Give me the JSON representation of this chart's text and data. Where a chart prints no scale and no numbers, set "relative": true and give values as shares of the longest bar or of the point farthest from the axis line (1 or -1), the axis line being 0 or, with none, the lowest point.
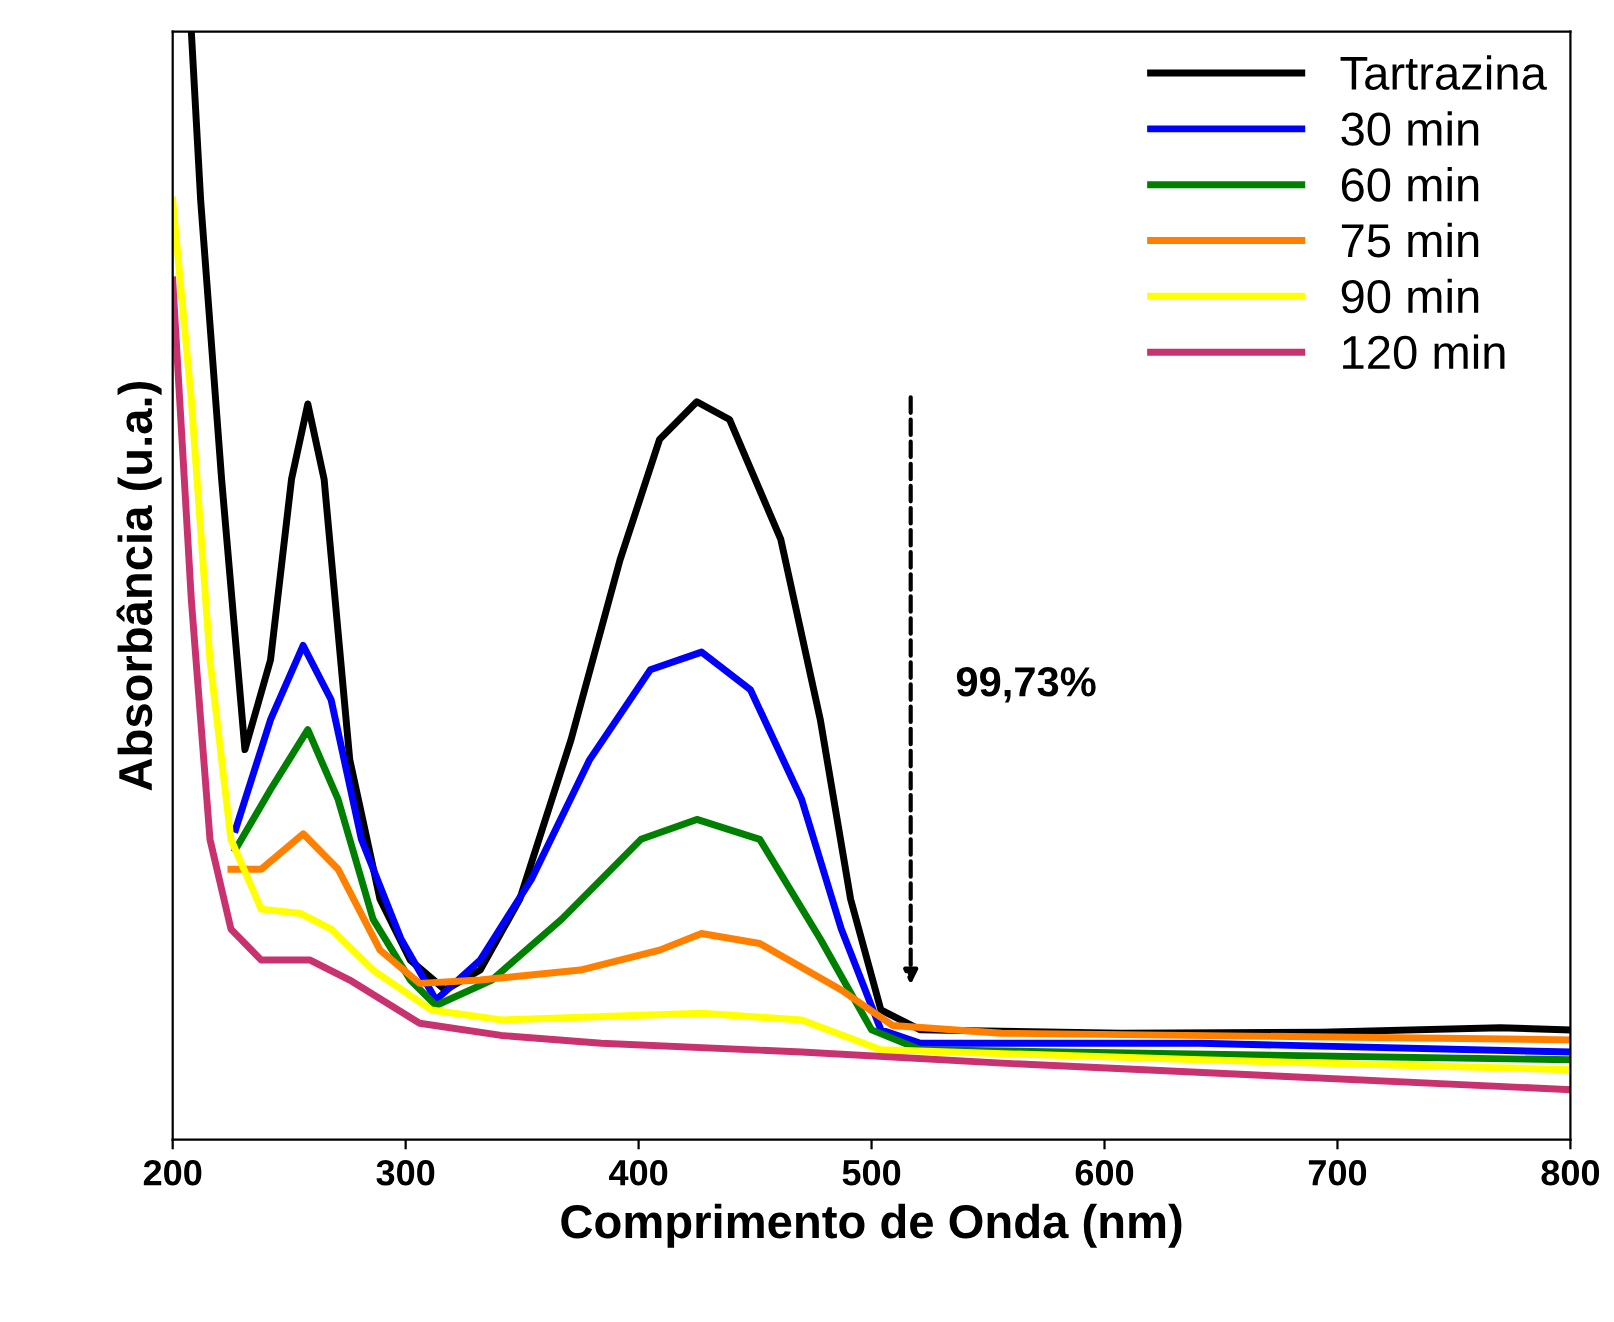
{
  "chart_data": {
    "type": "line",
    "relative": true,
    "xlabel": "Comprimento de Onda (nm)",
    "ylabel": "Absorbância (u.a.)",
    "xlim": [
      200,
      800
    ],
    "xticks": [
      200,
      300,
      400,
      500,
      600,
      700,
      800
    ],
    "legend": "top right",
    "grid": false,
    "annotations": [
      "99,73%"
    ],
    "series": [
      {
        "name": "Tartrazina",
        "color": "#000000",
        "x": [
          208,
          212,
          221,
          231,
          242,
          251,
          258,
          265,
          276,
          289,
          302,
          317,
          332,
          349,
          371,
          392,
          409,
          425,
          439,
          461,
          478,
          491,
          504,
          521,
          607,
          693,
          770,
          800
        ],
        "values": [
          1.0,
          0.848,
          0.596,
          0.352,
          0.433,
          0.596,
          0.664,
          0.596,
          0.343,
          0.217,
          0.162,
          0.135,
          0.153,
          0.217,
          0.361,
          0.523,
          0.632,
          0.666,
          0.65,
          0.542,
          0.379,
          0.217,
          0.117,
          0.099,
          0.096,
          0.097,
          0.101,
          0.099
        ]
      },
      {
        "name": "30 min",
        "color": "#0000ff",
        "x": [
          227,
          242,
          256,
          268,
          281,
          298,
          313,
          332,
          354,
          379,
          405,
          427,
          448,
          470,
          487,
          504,
          521,
          641,
          800
        ],
        "values": [
          0.28,
          0.379,
          0.446,
          0.397,
          0.271,
          0.181,
          0.126,
          0.162,
          0.235,
          0.343,
          0.424,
          0.44,
          0.406,
          0.307,
          0.19,
          0.099,
          0.087,
          0.087,
          0.079
        ]
      },
      {
        "name": "60 min",
        "color": "#008000",
        "x": [
          227,
          242,
          258,
          271,
          286,
          302,
          313,
          337,
          367,
          401,
          425,
          452,
          478,
          500,
          521,
          800
        ],
        "values": [
          0.262,
          0.316,
          0.37,
          0.307,
          0.199,
          0.144,
          0.121,
          0.144,
          0.199,
          0.271,
          0.289,
          0.271,
          0.181,
          0.099,
          0.081,
          0.072
        ]
      },
      {
        "name": "75 min",
        "color": "#ff8000",
        "x": [
          225,
          238,
          256,
          271,
          289,
          306,
          332,
          375,
          409,
          427,
          452,
          487,
          509,
          556,
          800
        ],
        "values": [
          0.244,
          0.244,
          0.276,
          0.244,
          0.171,
          0.141,
          0.144,
          0.153,
          0.171,
          0.186,
          0.177,
          0.135,
          0.103,
          0.096,
          0.09
        ]
      },
      {
        "name": "90 min",
        "color": "#ffff00",
        "x": [
          200,
          208,
          216,
          225,
          238,
          255,
          268,
          286,
          311,
          341,
          427,
          470,
          504,
          641,
          800
        ],
        "values": [
          0.848,
          0.668,
          0.433,
          0.271,
          0.208,
          0.204,
          0.19,
          0.153,
          0.117,
          0.108,
          0.114,
          0.108,
          0.081,
          0.072,
          0.063
        ]
      },
      {
        "name": "120 min",
        "color": "#c8326e",
        "x": [
          200,
          208,
          216,
          225,
          238,
          259,
          276,
          306,
          341,
          384,
          470,
          556,
          800
        ],
        "values": [
          0.776,
          0.487,
          0.271,
          0.19,
          0.162,
          0.162,
          0.144,
          0.105,
          0.094,
          0.087,
          0.079,
          0.069,
          0.045
        ]
      }
    ]
  }
}
